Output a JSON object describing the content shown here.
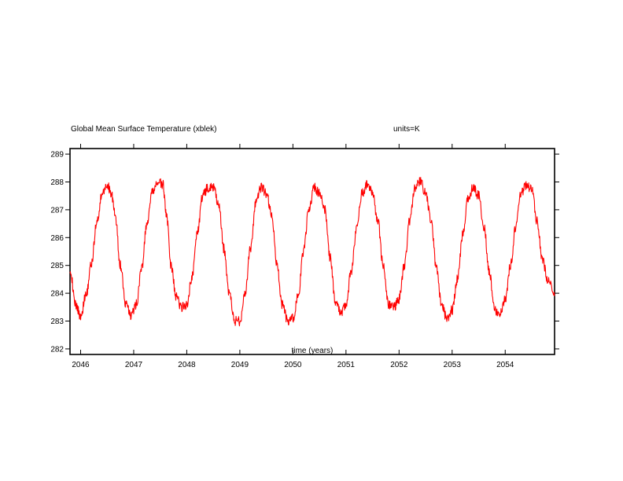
{
  "chart_data": {
    "type": "line",
    "title": "Global Mean Surface Temperature (xblek)",
    "units_label": "units=K",
    "xlabel": "time (years)",
    "ylabel": "",
    "xlim": [
      2045.8,
      2054.93
    ],
    "ylim": [
      281.8,
      289.2
    ],
    "x_ticks": [
      2046,
      2047,
      2048,
      2049,
      2050,
      2051,
      2052,
      2053,
      2054
    ],
    "x_tick_labels": [
      "2046",
      "2047",
      "2048",
      "2049",
      "2050",
      "2051",
      "2052",
      "2053",
      "2054"
    ],
    "y_ticks": [
      282,
      283,
      284,
      285,
      286,
      287,
      288,
      289
    ],
    "y_tick_labels": [
      "282",
      "283",
      "284",
      "285",
      "286",
      "287",
      "288",
      "289"
    ],
    "grid": false,
    "line_color": "#ff0000",
    "series": [
      {
        "x": [
          2045.8,
          2045.9,
          2046.0,
          2046.1,
          2046.2,
          2046.3,
          2046.4,
          2046.5,
          2046.58,
          2046.65,
          2046.75,
          2046.85,
          2046.95,
          2047.05,
          2047.15,
          2047.25,
          2047.35,
          2047.45,
          2047.55,
          2047.62,
          2047.7,
          2047.8,
          2047.9,
          2048.0,
          2048.1,
          2048.2,
          2048.3,
          2048.4,
          2048.5,
          2048.6,
          2048.7,
          2048.8,
          2048.9,
          2049.0,
          2049.1,
          2049.2,
          2049.3,
          2049.4,
          2049.5,
          2049.6,
          2049.7,
          2049.8,
          2049.9,
          2050.0,
          2050.1,
          2050.2,
          2050.3,
          2050.4,
          2050.5,
          2050.6,
          2050.7,
          2050.8,
          2050.9,
          2051.0,
          2051.1,
          2051.2,
          2051.3,
          2051.4,
          2051.5,
          2051.6,
          2051.7,
          2051.8,
          2051.9,
          2052.0,
          2052.1,
          2052.2,
          2052.3,
          2052.4,
          2052.5,
          2052.6,
          2052.7,
          2052.8,
          2052.9,
          2053.0,
          2053.1,
          2053.2,
          2053.3,
          2053.4,
          2053.5,
          2053.6,
          2053.7,
          2053.8,
          2053.9,
          2054.0,
          2054.1,
          2054.2,
          2054.3,
          2054.4,
          2054.5,
          2054.6,
          2054.7,
          2054.8,
          2054.93
        ],
        "y": [
          284.9,
          283.6,
          283.2,
          283.9,
          285.0,
          286.5,
          287.5,
          287.9,
          287.6,
          286.8,
          285.0,
          283.6,
          283.2,
          283.6,
          284.9,
          286.5,
          287.6,
          288.0,
          287.9,
          286.8,
          285.0,
          283.9,
          283.5,
          283.6,
          284.6,
          286.2,
          287.5,
          287.8,
          287.8,
          287.2,
          285.6,
          284.0,
          283.0,
          283.0,
          284.0,
          285.6,
          287.2,
          287.8,
          287.6,
          286.8,
          285.0,
          283.6,
          283.0,
          283.1,
          283.9,
          285.5,
          287.0,
          287.8,
          287.6,
          287.0,
          285.3,
          283.7,
          283.3,
          283.6,
          284.8,
          286.3,
          287.6,
          287.9,
          287.6,
          286.6,
          285.0,
          283.6,
          283.5,
          283.8,
          285.0,
          286.6,
          287.8,
          288.0,
          287.6,
          286.6,
          285.0,
          283.6,
          283.1,
          283.4,
          284.5,
          286.1,
          287.4,
          287.8,
          287.5,
          286.4,
          284.8,
          283.4,
          283.3,
          283.8,
          285.0,
          286.4,
          287.6,
          287.9,
          287.7,
          286.6,
          285.2,
          284.5,
          283.9
        ]
      }
    ]
  }
}
